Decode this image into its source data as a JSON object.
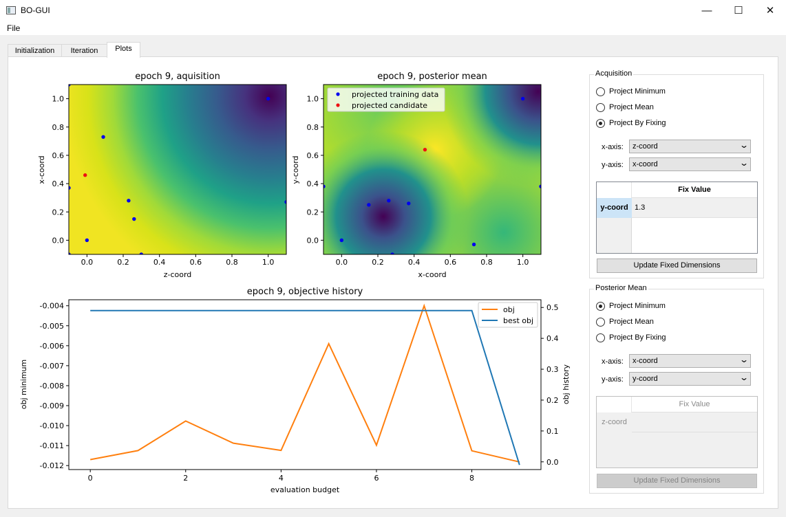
{
  "window": {
    "title": "BO-GUI",
    "minimize_glyph": "—",
    "maximize_glyph": "☐",
    "close_glyph": "✕"
  },
  "menu": {
    "file": "File"
  },
  "tabs": [
    {
      "label": "Initialization",
      "active": false
    },
    {
      "label": "Iteration",
      "active": false
    },
    {
      "label": "Plots",
      "active": true
    }
  ],
  "icons": {
    "app": "app-window-icon",
    "dropdown": "chevron-down-icon"
  },
  "colors": {
    "training_point": "#0000ee",
    "candidate_point": "#ee1111",
    "obj_line": "#ff7f0e",
    "best_obj_line": "#1f77b4"
  },
  "chart_data": [
    {
      "type": "heatmap",
      "title": "epoch 9, aquisition",
      "xlabel": "z-coord",
      "ylabel": "x-coord",
      "xlim": [
        -0.1,
        1.1
      ],
      "ylim": [
        -0.1,
        1.1
      ],
      "xticks": [
        "0.0",
        "0.2",
        "0.4",
        "0.6",
        "0.8",
        "1.0"
      ],
      "yticks": [
        "0.0",
        "0.2",
        "0.4",
        "0.6",
        "0.8",
        "1.0"
      ],
      "colormap": "viridis",
      "training_points": [
        [
          -0.1,
          1.1
        ],
        [
          1.0,
          1.0
        ],
        [
          0.09,
          0.73
        ],
        [
          -0.1,
          0.37
        ],
        [
          0.23,
          0.28
        ],
        [
          1.1,
          0.27
        ],
        [
          0.26,
          0.15
        ],
        [
          0.0,
          0.0
        ],
        [
          -0.1,
          -0.1
        ],
        [
          0.3,
          -0.1
        ]
      ],
      "candidate_points": [
        [
          -0.01,
          0.46
        ]
      ]
    },
    {
      "type": "heatmap",
      "title": "epoch 9, posterior mean",
      "xlabel": "x-coord",
      "ylabel": "y-coord",
      "xlim": [
        -0.1,
        1.1
      ],
      "ylim": [
        -0.1,
        1.1
      ],
      "xticks": [
        "0.0",
        "0.2",
        "0.4",
        "0.6",
        "0.8",
        "1.0"
      ],
      "yticks": [
        "0.0",
        "0.2",
        "0.4",
        "0.6",
        "0.8",
        "1.0"
      ],
      "colormap": "viridis",
      "legend": [
        "projected training data",
        "projected candidate"
      ],
      "legend_position": "top-left",
      "training_points": [
        [
          1.0,
          1.0
        ],
        [
          -0.1,
          0.38
        ],
        [
          1.1,
          0.38
        ],
        [
          0.26,
          0.28
        ],
        [
          0.37,
          0.26
        ],
        [
          0.15,
          0.25
        ],
        [
          0.0,
          0.0
        ],
        [
          0.73,
          -0.03
        ],
        [
          0.28,
          -0.1
        ]
      ],
      "candidate_points": [
        [
          0.46,
          0.64
        ]
      ]
    },
    {
      "type": "line",
      "title": "epoch 9, objective history",
      "xlabel": "evaluation budget",
      "ylabel": "obj minimum",
      "y2label": "obj history",
      "x": [
        0,
        1,
        2,
        3,
        4,
        5,
        6,
        7,
        8,
        9
      ],
      "xticks": [
        "0",
        "2",
        "4",
        "6",
        "8"
      ],
      "yticks": [
        "-0.004",
        "-0.005",
        "-0.006",
        "-0.007",
        "-0.008",
        "-0.009",
        "-0.010",
        "-0.011",
        "-0.012"
      ],
      "y2ticks": [
        "0.5",
        "0.4",
        "0.3",
        "0.2",
        "0.1",
        "0.0"
      ],
      "xlim": [
        -0.45,
        9.45
      ],
      "ylim": [
        -0.0122,
        -0.0037
      ],
      "y2lim": [
        -0.025,
        0.525
      ],
      "series": [
        {
          "name": "obj",
          "axis": "left",
          "color": "#ff7f0e",
          "values": [
            -0.0117,
            -0.01125,
            -0.00977,
            -0.01088,
            -0.01124,
            -0.0059,
            -0.01098,
            -0.004,
            -0.01126,
            -0.01182
          ]
        },
        {
          "name": "best obj",
          "axis": "right",
          "color": "#1f77b4",
          "values": [
            0.49,
            0.49,
            0.49,
            0.49,
            0.49,
            0.49,
            0.49,
            0.49,
            0.49,
            -0.01
          ]
        }
      ],
      "legend_position": "top-right"
    }
  ],
  "acquisition": {
    "group_title": "Acquisition",
    "options": [
      {
        "label": "Project Minimum",
        "checked": false
      },
      {
        "label": "Project Mean",
        "checked": false
      },
      {
        "label": "Project By Fixing",
        "checked": true
      }
    ],
    "x_axis_label": "x-axis:",
    "x_axis_value": "z-coord",
    "y_axis_label": "y-axis:",
    "y_axis_value": "x-coord",
    "table_header": "Fix Value",
    "row_label": "y-coord",
    "row_value": "1.3",
    "update_button": "Update Fixed Dimensions"
  },
  "posterior": {
    "group_title": "Posterior Mean",
    "options": [
      {
        "label": "Project Minimum",
        "checked": true
      },
      {
        "label": "Project Mean",
        "checked": false
      },
      {
        "label": "Project By Fixing",
        "checked": false
      }
    ],
    "x_axis_label": "x-axis:",
    "x_axis_value": "x-coord",
    "y_axis_label": "y-axis:",
    "y_axis_value": "y-coord",
    "table_header": "Fix Value",
    "row_label": "z-coord",
    "row_value": "",
    "update_button": "Update Fixed Dimensions"
  }
}
